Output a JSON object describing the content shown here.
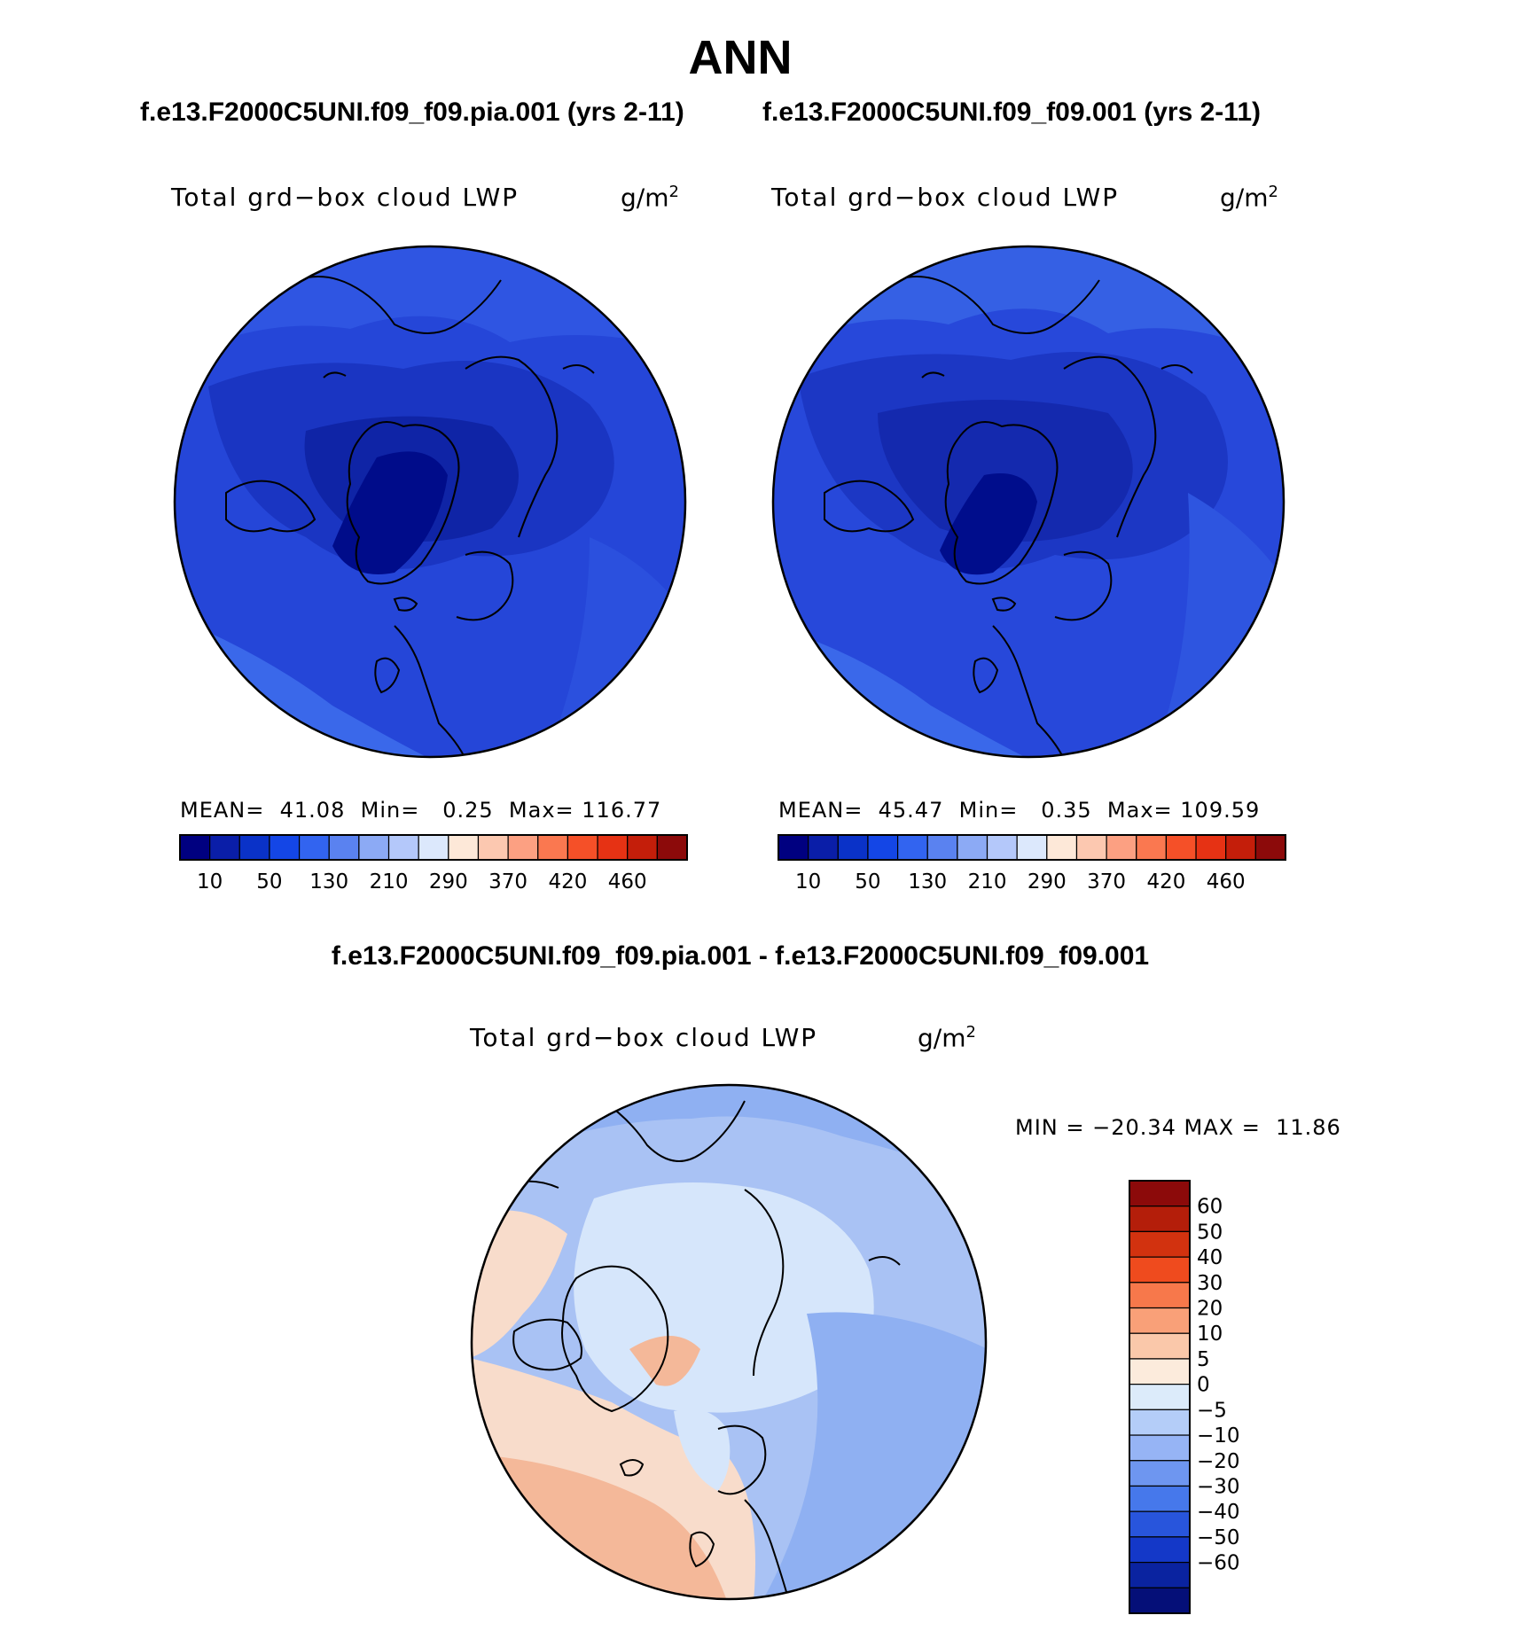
{
  "page": {
    "season": "ANN",
    "case1_title": "f.e13.F2000C5UNI.f09_f09.pia.001 (yrs 2-11)",
    "case2_title": "f.e13.F2000C5UNI.f09_f09.001 (yrs 2-11)",
    "diff_title": "f.e13.F2000C5UNI.f09_f09.pia.001 - f.e13.F2000C5UNI.f09_f09.001"
  },
  "panels": [
    {
      "variable": "Total grd−box cloud LWP",
      "units": "g/m",
      "units_exponent": "2",
      "mean_label": "MEAN=",
      "mean": "41.08",
      "min_label": "Min=",
      "min": "0.25",
      "max_label": "Max=",
      "max": "116.77"
    },
    {
      "variable": "Total grd−box cloud LWP",
      "units": "g/m",
      "units_exponent": "2",
      "mean_label": "MEAN=",
      "mean": "45.47",
      "min_label": "Min=",
      "min": "0.35",
      "max_label": "Max=",
      "max": "109.59"
    }
  ],
  "diff_panel": {
    "variable": "Total grd−box cloud LWP",
    "units": "g/m",
    "units_exponent": "2",
    "minmax_text": "MIN = −20.34 MAX =  11.86"
  },
  "colorbar": {
    "colors": [
      "#000080",
      "#0a1ea8",
      "#0a32c8",
      "#1446e6",
      "#3264f0",
      "#5a82f0",
      "#8caaf5",
      "#b4c8fa",
      "#dce8fc",
      "#fde8d8",
      "#fcc8b0",
      "#fca082",
      "#fa7850",
      "#f55028",
      "#e63214",
      "#c41e0a",
      "#8c0a0a"
    ],
    "tick_labels": [
      "10",
      "50",
      "130",
      "210",
      "290",
      "370",
      "420",
      "460"
    ]
  },
  "diff_colorbar": {
    "colors_top_down": [
      "#8c0a0a",
      "#b41e0a",
      "#d2320f",
      "#ef4b1e",
      "#f7784b",
      "#f9a078",
      "#fac8aa",
      "#fcebdc",
      "#dcebfa",
      "#b4cdf8",
      "#96b4f5",
      "#6e96f0",
      "#4678eb",
      "#2855dc",
      "#1438c8",
      "#0a23a0",
      "#050f78"
    ],
    "labels_top_down": [
      "60",
      "50",
      "40",
      "30",
      "20",
      "10",
      "5",
      "0",
      "−5",
      "−10",
      "−20",
      "−30",
      "−40",
      "−50",
      "−60"
    ]
  },
  "map_colors": {
    "ocean_deep": "#1e3ccf",
    "mid": "#1a32b8",
    "dark": "#0d1f96",
    "darkest": "#00108a",
    "light": "#3466e6",
    "lighter": "#4a7aee",
    "diff_base": "#a8c2f4",
    "diff_light": "#d6e6fb",
    "diff_blue": "#8fb0f2",
    "diff_peach": "#f8dccb",
    "diff_salmon": "#f4b899",
    "diff_orange": "#ec9d7c"
  }
}
